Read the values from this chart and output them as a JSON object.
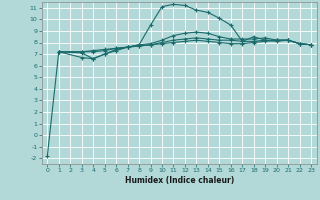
{
  "xlabel": "Humidex (Indice chaleur)",
  "bg_color": "#b2d8d8",
  "grid_color": "#ffffff",
  "line_color": "#1a6b6b",
  "xlim": [
    -0.5,
    23.5
  ],
  "ylim": [
    -2.5,
    11.5
  ],
  "xticks": [
    0,
    1,
    2,
    3,
    4,
    5,
    6,
    7,
    8,
    9,
    10,
    11,
    12,
    13,
    14,
    15,
    16,
    17,
    18,
    19,
    20,
    21,
    22,
    23
  ],
  "yticks": [
    -2,
    -1,
    0,
    1,
    2,
    3,
    4,
    5,
    6,
    7,
    8,
    9,
    10,
    11
  ],
  "series": [
    {
      "x": [
        0,
        1,
        3,
        4,
        5,
        6,
        7,
        8,
        9,
        10,
        11,
        12,
        13,
        14,
        15,
        16,
        17,
        18,
        19,
        20,
        21,
        22,
        23
      ],
      "y": [
        -1.8,
        7.2,
        7.1,
        6.6,
        7.0,
        7.3,
        7.6,
        7.8,
        9.5,
        11.1,
        11.3,
        11.2,
        10.8,
        10.6,
        10.1,
        9.5,
        8.1,
        8.5,
        8.2,
        8.1,
        8.2,
        7.9,
        7.8
      ]
    },
    {
      "x": [
        1,
        3,
        4,
        5,
        6,
        7,
        8,
        9,
        10,
        11,
        12,
        13,
        14,
        15,
        16,
        17,
        18,
        19,
        20,
        21,
        22,
        23
      ],
      "y": [
        7.2,
        6.7,
        6.6,
        7.0,
        7.4,
        7.6,
        7.8,
        7.9,
        8.2,
        8.6,
        8.8,
        8.9,
        8.8,
        8.5,
        8.3,
        8.3,
        8.3,
        8.4,
        8.2,
        8.2,
        7.9,
        7.8
      ]
    },
    {
      "x": [
        1,
        3,
        4,
        5,
        6,
        7,
        8,
        9,
        10,
        11,
        12,
        13,
        14,
        15,
        16,
        17,
        18,
        19,
        20,
        21,
        22,
        23
      ],
      "y": [
        7.2,
        7.2,
        7.2,
        7.3,
        7.5,
        7.6,
        7.7,
        7.8,
        8.0,
        8.2,
        8.3,
        8.4,
        8.3,
        8.2,
        8.2,
        8.1,
        8.1,
        8.2,
        8.2,
        8.2,
        7.9,
        7.8
      ]
    },
    {
      "x": [
        1,
        3,
        4,
        5,
        6,
        7,
        8,
        9,
        10,
        11,
        12,
        13,
        14,
        15,
        16,
        17,
        18,
        19,
        20,
        21,
        22,
        23
      ],
      "y": [
        7.2,
        7.2,
        7.3,
        7.4,
        7.5,
        7.6,
        7.7,
        7.8,
        7.9,
        8.0,
        8.1,
        8.2,
        8.1,
        8.0,
        7.9,
        7.9,
        8.0,
        8.1,
        8.2,
        8.2,
        7.9,
        7.8
      ]
    }
  ]
}
